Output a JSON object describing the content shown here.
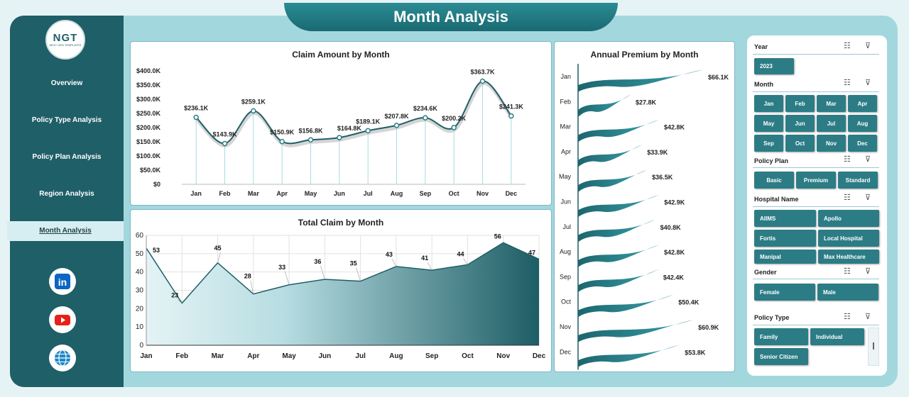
{
  "header": {
    "title": "Month Analysis"
  },
  "logo": {
    "text": "NGT",
    "subtext": "NEXT GEN TEMPLATES"
  },
  "sidebar": {
    "items": [
      {
        "label": "Overview"
      },
      {
        "label": "Policy Type Analysis"
      },
      {
        "label": "Policy Plan Analysis"
      },
      {
        "label": "Region Analysis"
      },
      {
        "label": "Month Analysis"
      }
    ],
    "social": [
      {
        "icon": "linkedin-icon",
        "label": "in"
      },
      {
        "icon": "youtube-icon",
        "label": "▶"
      },
      {
        "icon": "globe-icon",
        "label": "🌐"
      }
    ]
  },
  "colors": {
    "accent": "#1f5f67",
    "teal": "#2c7c85",
    "frame": "#a3d7de"
  },
  "chart_data": [
    {
      "type": "line",
      "title": "Claim Amount by Month",
      "categories": [
        "Jan",
        "Feb",
        "Mar",
        "Apr",
        "May",
        "Jun",
        "Jul",
        "Aug",
        "Sep",
        "Oct",
        "Nov",
        "Dec"
      ],
      "values": [
        236.1,
        143.9,
        259.1,
        150.9,
        156.8,
        164.8,
        189.1,
        207.8,
        234.6,
        200.2,
        363.7,
        241.3
      ],
      "labels": [
        "$236.1K",
        "$143.9K",
        "$259.1K",
        "$150.9K",
        "$156.8K",
        "$164.8K",
        "$189.1K",
        "$207.8K",
        "$234.6K",
        "$200.2K",
        "$363.7K",
        "$241.3K"
      ],
      "yticks": [
        "$0",
        "$50.0K",
        "$100.0K",
        "$150.0K",
        "$200.0K",
        "$250.0K",
        "$300.0K",
        "$350.0K",
        "$400.0K"
      ],
      "ylim": [
        0,
        400
      ]
    },
    {
      "type": "area",
      "title": "Total Claim by Month",
      "categories": [
        "Jan",
        "Feb",
        "Mar",
        "Apr",
        "May",
        "Jun",
        "Jul",
        "Aug",
        "Sep",
        "Oct",
        "Nov",
        "Dec"
      ],
      "values": [
        53,
        23,
        45,
        28,
        33,
        36,
        35,
        43,
        41,
        44,
        56,
        47
      ],
      "yticks": [
        "0",
        "10",
        "20",
        "30",
        "40",
        "50",
        "60"
      ],
      "ylim": [
        0,
        60
      ],
      "grid": true
    },
    {
      "type": "bar",
      "title": "Annual Premium by Month",
      "categories": [
        "Jan",
        "Feb",
        "Mar",
        "Apr",
        "May",
        "Jun",
        "Jul",
        "Aug",
        "Sep",
        "Oct",
        "Nov",
        "Dec"
      ],
      "values": [
        66.1,
        27.8,
        42.8,
        33.9,
        36.5,
        42.9,
        40.8,
        42.8,
        42.4,
        50.4,
        60.9,
        53.8
      ],
      "labels": [
        "$66.1K",
        "$27.8K",
        "$42.8K",
        "$33.9K",
        "$36.5K",
        "$42.9K",
        "$40.8K",
        "$42.8K",
        "$42.4K",
        "$50.4K",
        "$60.9K",
        "$53.8K"
      ]
    }
  ],
  "slicers": {
    "year": {
      "title": "Year",
      "options": [
        "2023"
      ]
    },
    "month": {
      "title": "Month",
      "options": [
        "Jan",
        "Feb",
        "Mar",
        "Apr",
        "May",
        "Jun",
        "Jul",
        "Aug",
        "Sep",
        "Oct",
        "Nov",
        "Dec"
      ]
    },
    "policy_plan": {
      "title": "Policy Plan",
      "options": [
        "Basic",
        "Premium",
        "Standard"
      ]
    },
    "hospital": {
      "title": "Hospital Name",
      "options": [
        "AIIMS",
        "Apollo",
        "Fortis",
        "Local Hospital",
        "Manipal",
        "Max Healthcare"
      ]
    },
    "gender": {
      "title": "Gender",
      "options": [
        "Female",
        "Male"
      ]
    },
    "policy_type": {
      "title": "Policy Type",
      "options": [
        "Family",
        "Individual",
        "Senior Citizen"
      ]
    }
  }
}
